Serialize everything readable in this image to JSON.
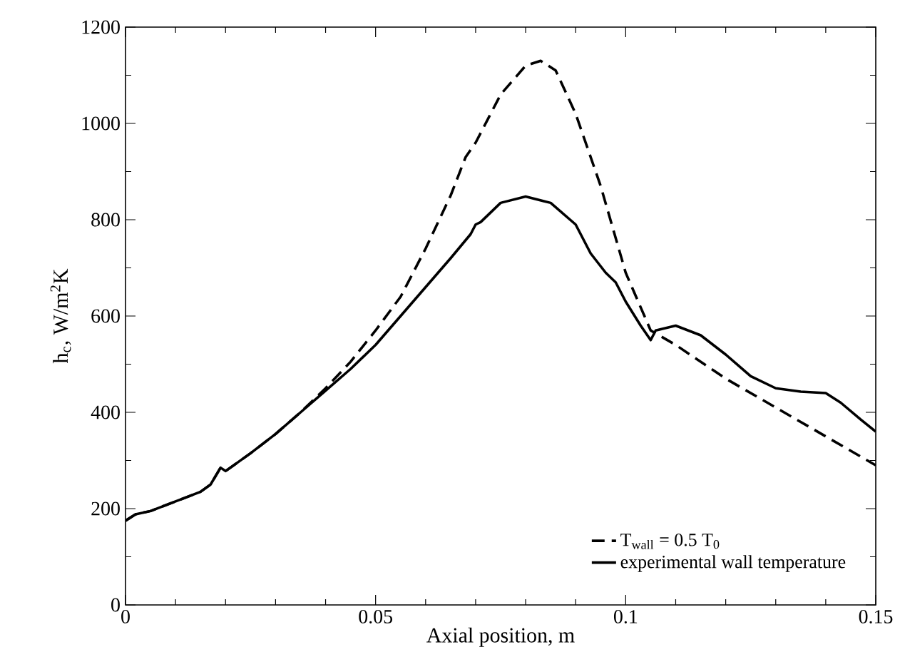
{
  "chart_data": {
    "type": "line",
    "xlabel": "Axial position, m",
    "ylabel": "h$_{c}$, W/m$^{2}$K",
    "xlim": [
      0,
      0.15
    ],
    "ylim": [
      0,
      1200
    ],
    "xticks": [
      0,
      0.05,
      0.1,
      0.15
    ],
    "yticks": [
      0,
      200,
      400,
      600,
      800,
      1000,
      1200
    ],
    "grid": false,
    "legend": "bottom right",
    "marker": "none",
    "series": [
      {
        "name": "T$_{wall}$ = 0.5 T$_{0}$",
        "color": "#000000",
        "line_style": "dashed",
        "x": [
          0,
          0.002,
          0.005,
          0.01,
          0.015,
          0.017,
          0.019,
          0.02,
          0.025,
          0.03,
          0.035,
          0.04,
          0.045,
          0.05,
          0.055,
          0.06,
          0.065,
          0.068,
          0.07,
          0.075,
          0.08,
          0.083,
          0.086,
          0.09,
          0.095,
          0.1,
          0.105,
          0.11,
          0.12,
          0.13,
          0.14,
          0.15
        ],
        "values": [
          175,
          188,
          195,
          215,
          235,
          250,
          285,
          278,
          315,
          355,
          400,
          450,
          505,
          570,
          640,
          740,
          850,
          930,
          960,
          1060,
          1120,
          1130,
          1110,
          1020,
          870,
          690,
          570,
          540,
          470,
          410,
          350,
          290
        ]
      },
      {
        "name": "experimental wall temperature",
        "color": "#000000",
        "line_style": "solid",
        "x": [
          0,
          0.002,
          0.005,
          0.01,
          0.015,
          0.017,
          0.019,
          0.02,
          0.025,
          0.03,
          0.035,
          0.04,
          0.045,
          0.05,
          0.055,
          0.06,
          0.065,
          0.069,
          0.07,
          0.071,
          0.075,
          0.08,
          0.085,
          0.09,
          0.093,
          0.096,
          0.098,
          0.1,
          0.103,
          0.105,
          0.106,
          0.11,
          0.115,
          0.12,
          0.125,
          0.13,
          0.135,
          0.14,
          0.143,
          0.147,
          0.15
        ],
        "values": [
          175,
          188,
          195,
          215,
          235,
          250,
          285,
          278,
          315,
          355,
          400,
          445,
          490,
          540,
          600,
          660,
          720,
          770,
          790,
          795,
          835,
          848,
          835,
          790,
          730,
          690,
          670,
          630,
          580,
          550,
          570,
          580,
          560,
          520,
          475,
          450,
          443,
          440,
          420,
          385,
          360
        ]
      }
    ]
  }
}
